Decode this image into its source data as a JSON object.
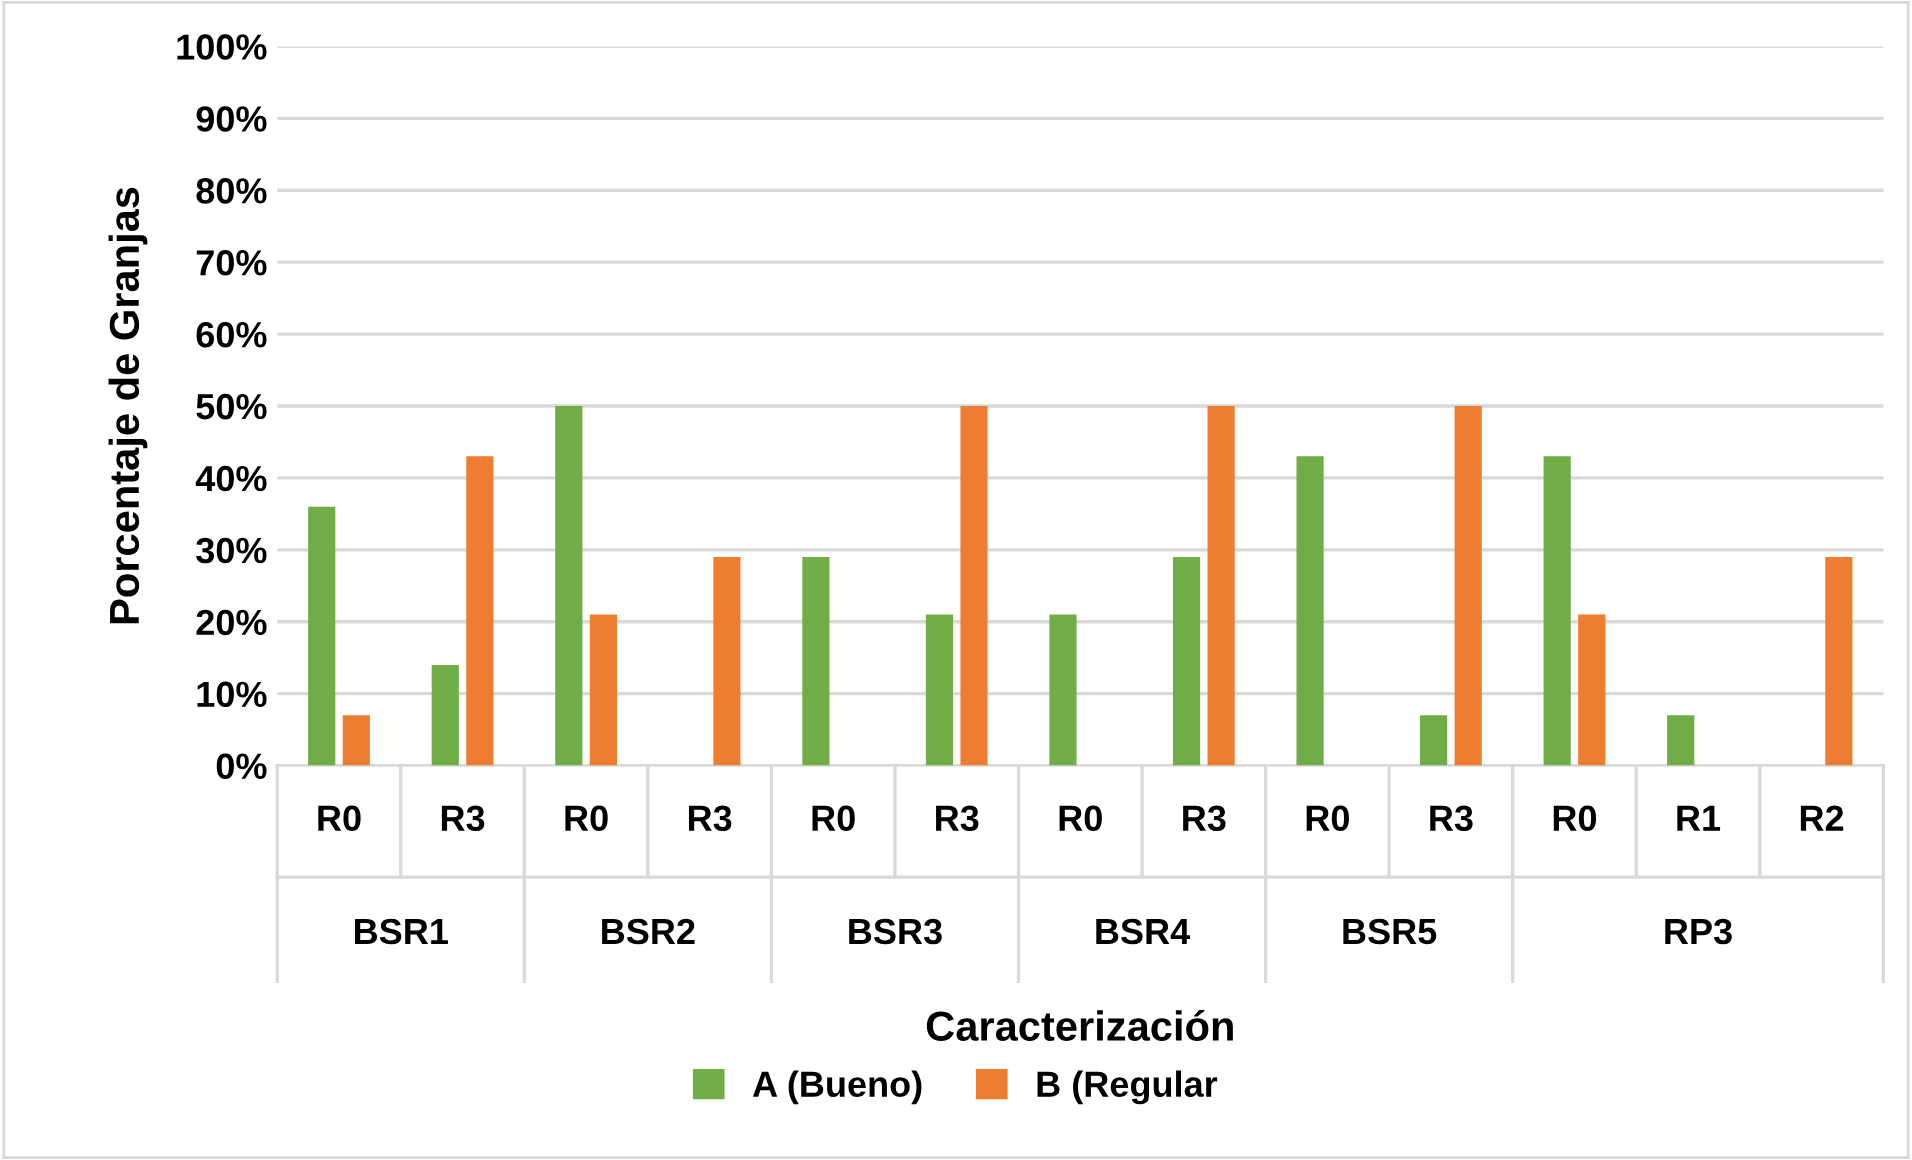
{
  "chart_data": {
    "type": "bar",
    "xlabel": "Caracterización",
    "ylabel": "Porcentaje de Granjas",
    "categories": [
      "R0",
      "R3",
      "R0",
      "R3",
      "R0",
      "R3",
      "R0",
      "R3",
      "R0",
      "R3",
      "R0",
      "R1",
      "R2"
    ],
    "annotations": [
      "BSR1",
      "BSR2",
      "BSR3",
      "BSR4",
      "BSR5",
      "RP3"
    ],
    "series": [
      {
        "name": "A (Bueno)",
        "color": "#70ad47",
        "values": [
          36,
          14,
          50,
          null,
          29,
          21,
          21,
          29,
          43,
          7,
          43,
          7,
          null
        ]
      },
      {
        "name": "B (Regular",
        "color": "#ed7d31",
        "values": [
          7,
          43,
          21,
          29,
          null,
          50,
          null,
          50,
          null,
          50,
          21,
          null,
          29
        ]
      }
    ],
    "ylim": [
      0,
      100
    ],
    "yticks": [
      {
        "value": 0,
        "label": "0%"
      },
      {
        "value": 10,
        "label": "10%"
      },
      {
        "value": 20,
        "label": "20%"
      },
      {
        "value": 30,
        "label": "30%"
      },
      {
        "value": 40,
        "label": "40%"
      },
      {
        "value": 50,
        "label": "50%"
      },
      {
        "value": 60,
        "label": "60%"
      },
      {
        "value": 70,
        "label": "70%"
      },
      {
        "value": 80,
        "label": "80%"
      },
      {
        "value": 90,
        "label": "90%"
      },
      {
        "value": 100,
        "label": "100%"
      }
    ],
    "grid": "y",
    "legend": "bottom"
  }
}
